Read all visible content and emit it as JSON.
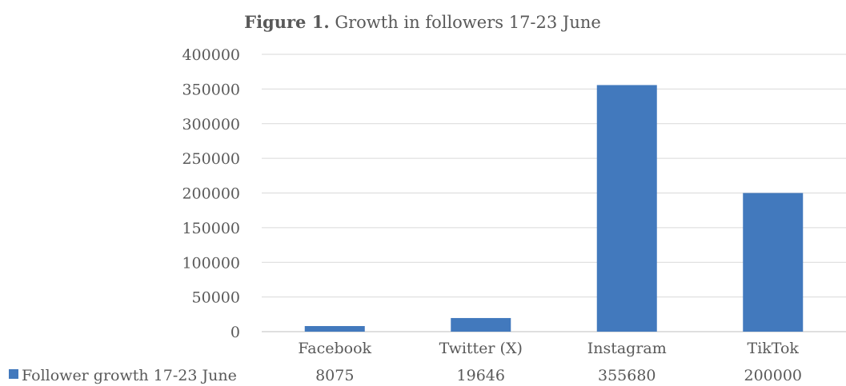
{
  "chart_data": {
    "type": "bar",
    "title_bold": "Figure 1.",
    "title_rest": " Growth in followers 17-23 June",
    "categories": [
      "Facebook",
      "Twitter (X)",
      "Instagram",
      "TikTok"
    ],
    "series": [
      {
        "name": "Follower growth 17-23 June",
        "values": [
          8075,
          19646,
          355680,
          200000
        ],
        "color": "#4279BD"
      }
    ],
    "ylim": [
      0,
      400000
    ],
    "yticks": [
      0,
      50000,
      100000,
      150000,
      200000,
      250000,
      300000,
      350000,
      400000
    ],
    "grid": true,
    "data_table": true
  }
}
